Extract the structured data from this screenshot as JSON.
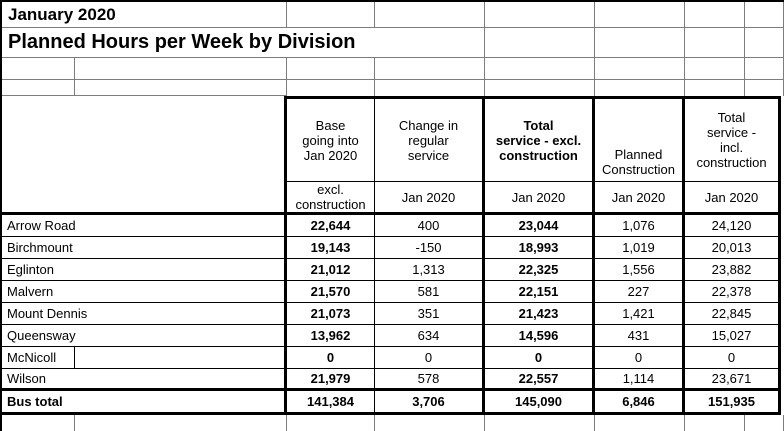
{
  "titles": {
    "month": "January 2020",
    "report": "Planned Hours per Week by Division"
  },
  "header": {
    "base": {
      "main": "Base\ngoing into\nJan 2020",
      "sub": "excl.\nconstruction"
    },
    "change": {
      "main": "Change in\nregular\nservice",
      "sub": "Jan 2020"
    },
    "total_excl": {
      "main": "Total\nservice - excl.\nconstruction",
      "sub": "Jan 2020"
    },
    "planned": {
      "main": "Planned\nConstruction",
      "sub": "Jan 2020"
    },
    "total_incl": {
      "main": "Total\nservice -\nincl.\nconstruction",
      "sub": "Jan 2020"
    }
  },
  "rows": [
    {
      "name": "Arrow Road",
      "values": [
        "22,644",
        "400",
        "23,044",
        "1,076",
        "24,120"
      ]
    },
    {
      "name": "Birchmount",
      "values": [
        "19,143",
        "-150",
        "18,993",
        "1,019",
        "20,013"
      ]
    },
    {
      "name": "Eglinton",
      "values": [
        "21,012",
        "1,313",
        "22,325",
        "1,556",
        "23,882"
      ]
    },
    {
      "name": "Malvern",
      "values": [
        "21,570",
        "581",
        "22,151",
        "227",
        "22,378"
      ]
    },
    {
      "name": "Mount Dennis",
      "values": [
        "21,073",
        "351",
        "21,423",
        "1,421",
        "22,845"
      ]
    },
    {
      "name": "Queensway",
      "values": [
        "13,962",
        "634",
        "14,596",
        "431",
        "15,027"
      ]
    },
    {
      "name": "McNicoll",
      "values": [
        "0",
        "0",
        "0",
        "0",
        "0"
      ]
    },
    {
      "name": "Wilson",
      "values": [
        "21,979",
        "578",
        "22,557",
        "1,114",
        "23,671"
      ]
    }
  ],
  "total": {
    "name": "Bus total",
    "values": [
      "141,384",
      "3,706",
      "145,090",
      "6,846",
      "151,935"
    ]
  },
  "colors": {
    "table_border": "#000000",
    "gridline": "#7d7d7d",
    "background": "#ffffff"
  }
}
